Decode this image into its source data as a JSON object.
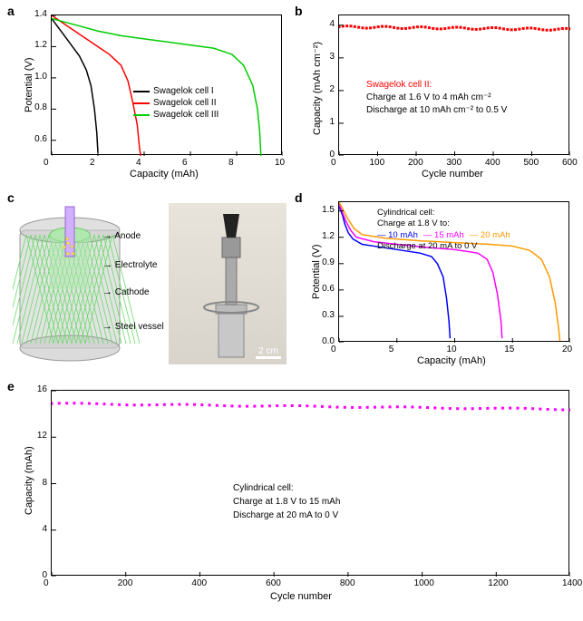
{
  "panels": {
    "a": {
      "label": "a",
      "type": "line",
      "xlabel": "Capacity (mAh)",
      "ylabel": "Potential (V)",
      "xlim": [
        0,
        10
      ],
      "ylim": [
        0.5,
        1.4
      ],
      "xticks": [
        0,
        2,
        4,
        6,
        8,
        10
      ],
      "yticks": [
        0.6,
        0.8,
        1.0,
        1.2,
        1.4
      ],
      "label_fontsize": 11,
      "tick_fontsize": 10,
      "series": [
        {
          "name": "Swagelok cell I",
          "color": "#000000",
          "data": [
            [
              0,
              1.38
            ],
            [
              0.3,
              1.32
            ],
            [
              0.6,
              1.26
            ],
            [
              0.9,
              1.2
            ],
            [
              1.2,
              1.14
            ],
            [
              1.5,
              1.05
            ],
            [
              1.7,
              0.95
            ],
            [
              1.85,
              0.8
            ],
            [
              1.95,
              0.65
            ],
            [
              2.0,
              0.52
            ]
          ]
        },
        {
          "name": "Swagelok cell II",
          "color": "#ff0000",
          "data": [
            [
              0,
              1.4
            ],
            [
              0.5,
              1.35
            ],
            [
              1.0,
              1.3
            ],
            [
              1.5,
              1.25
            ],
            [
              2.0,
              1.2
            ],
            [
              2.5,
              1.15
            ],
            [
              3.0,
              1.08
            ],
            [
              3.3,
              0.98
            ],
            [
              3.5,
              0.85
            ],
            [
              3.7,
              0.7
            ],
            [
              3.8,
              0.55
            ],
            [
              3.85,
              0.5
            ]
          ]
        },
        {
          "name": "Swagelok cell III",
          "color": "#00cc00",
          "data": [
            [
              0,
              1.38
            ],
            [
              1,
              1.34
            ],
            [
              2,
              1.3
            ],
            [
              3,
              1.27
            ],
            [
              4,
              1.25
            ],
            [
              5,
              1.23
            ],
            [
              6,
              1.21
            ],
            [
              7,
              1.19
            ],
            [
              7.8,
              1.15
            ],
            [
              8.3,
              1.08
            ],
            [
              8.7,
              0.95
            ],
            [
              8.9,
              0.8
            ],
            [
              9.0,
              0.65
            ],
            [
              9.05,
              0.5
            ]
          ]
        }
      ],
      "line_width": 1.5
    },
    "b": {
      "label": "b",
      "type": "scatter",
      "xlabel": "Cycle number",
      "ylabel": "Capacity (mAh cm⁻²)",
      "xlim": [
        0,
        600
      ],
      "ylim": [
        0,
        4.3
      ],
      "xticks": [
        0,
        100,
        200,
        300,
        400,
        500,
        600
      ],
      "yticks": [
        0,
        1,
        2,
        3,
        4
      ],
      "label_fontsize": 11,
      "tick_fontsize": 10,
      "series_color": "#ff0000",
      "marker_size": 3,
      "data_y": 3.95,
      "data_count": 60,
      "annotation": {
        "line1": {
          "text": "Swagelok cell II:",
          "color": "#ff0000"
        },
        "line2": {
          "text": "Charge at 1.6 V to 4 mAh cm⁻²",
          "color": "#000000"
        },
        "line3": {
          "text": "Discharge at 10 mAh cm⁻² to 0.5 V",
          "color": "#000000"
        }
      }
    },
    "c": {
      "label": "c",
      "labels": {
        "anode": "Anode",
        "electrolyte": "Electrolyte",
        "cathode": "Cathode",
        "vessel": "Steel vessel"
      },
      "scale_bar": "2 cm",
      "diagram_colors": {
        "vessel": "#cccccc",
        "vessel_border": "#999999",
        "cathode_mesh": "#66dd66",
        "electrolyte": "#b0e8b0",
        "anode": "#d0b0ff"
      }
    },
    "d": {
      "label": "d",
      "type": "line",
      "xlabel": "Capacity (mAh)",
      "ylabel": "Potential (V)",
      "xlim": [
        0,
        20
      ],
      "ylim": [
        0,
        1.6
      ],
      "xticks": [
        0,
        5,
        10,
        15,
        20
      ],
      "yticks": [
        0.0,
        0.3,
        0.6,
        0.9,
        1.2,
        1.5
      ],
      "label_fontsize": 11,
      "tick_fontsize": 10,
      "annotation_lines": {
        "title": "Cylindrical cell:",
        "charge": "Charge at 1.8 V to:",
        "s1": "10 mAh",
        "s2": "15 mAh",
        "s3": "20 mAh",
        "discharge": "Discharge at 20 mA to 0 V"
      },
      "series": [
        {
          "name": "10 mAh",
          "color": "#0000ff",
          "data": [
            [
              0,
              1.55
            ],
            [
              0.3,
              1.45
            ],
            [
              0.5,
              1.35
            ],
            [
              0.8,
              1.25
            ],
            [
              1.2,
              1.18
            ],
            [
              2,
              1.12
            ],
            [
              3,
              1.1
            ],
            [
              5,
              1.06
            ],
            [
              7,
              1.02
            ],
            [
              8,
              0.98
            ],
            [
              8.5,
              0.9
            ],
            [
              9,
              0.75
            ],
            [
              9.3,
              0.5
            ],
            [
              9.5,
              0.25
            ],
            [
              9.6,
              0.05
            ]
          ]
        },
        {
          "name": "15 mAh",
          "color": "#ff00ff",
          "data": [
            [
              0,
              1.58
            ],
            [
              0.3,
              1.48
            ],
            [
              0.6,
              1.38
            ],
            [
              1,
              1.28
            ],
            [
              1.5,
              1.2
            ],
            [
              3,
              1.15
            ],
            [
              5,
              1.12
            ],
            [
              8,
              1.08
            ],
            [
              10,
              1.06
            ],
            [
              12,
              1.02
            ],
            [
              12.8,
              0.95
            ],
            [
              13.3,
              0.8
            ],
            [
              13.7,
              0.55
            ],
            [
              14,
              0.25
            ],
            [
              14.1,
              0.05
            ]
          ]
        },
        {
          "name": "20 mAh",
          "color": "#ff9900",
          "data": [
            [
              0,
              1.6
            ],
            [
              0.4,
              1.5
            ],
            [
              0.8,
              1.4
            ],
            [
              1.3,
              1.3
            ],
            [
              2,
              1.23
            ],
            [
              4,
              1.19
            ],
            [
              7,
              1.16
            ],
            [
              10,
              1.14
            ],
            [
              13,
              1.12
            ],
            [
              15,
              1.1
            ],
            [
              16.5,
              1.05
            ],
            [
              17.5,
              0.95
            ],
            [
              18.2,
              0.75
            ],
            [
              18.7,
              0.45
            ],
            [
              19,
              0.15
            ],
            [
              19.1,
              0.02
            ]
          ]
        }
      ],
      "line_width": 1.5
    },
    "e": {
      "label": "e",
      "type": "scatter",
      "xlabel": "Cycle number",
      "ylabel": "Capacity (mAh)",
      "xlim": [
        0,
        1400
      ],
      "ylim": [
        0,
        16
      ],
      "xticks": [
        0,
        200,
        400,
        600,
        800,
        1000,
        1200,
        1400
      ],
      "yticks": [
        0,
        4,
        8,
        12,
        16
      ],
      "label_fontsize": 11,
      "tick_fontsize": 10,
      "series_color": "#ff00ff",
      "marker_size": 3,
      "data_y_start": 14.9,
      "data_y_end": 14.4,
      "data_count": 70,
      "annotation": {
        "line1": "Cylindrical cell:",
        "line2": "Charge at 1.8 V to 15 mAh",
        "line3": "Discharge at 20 mA to 0 V"
      }
    }
  }
}
